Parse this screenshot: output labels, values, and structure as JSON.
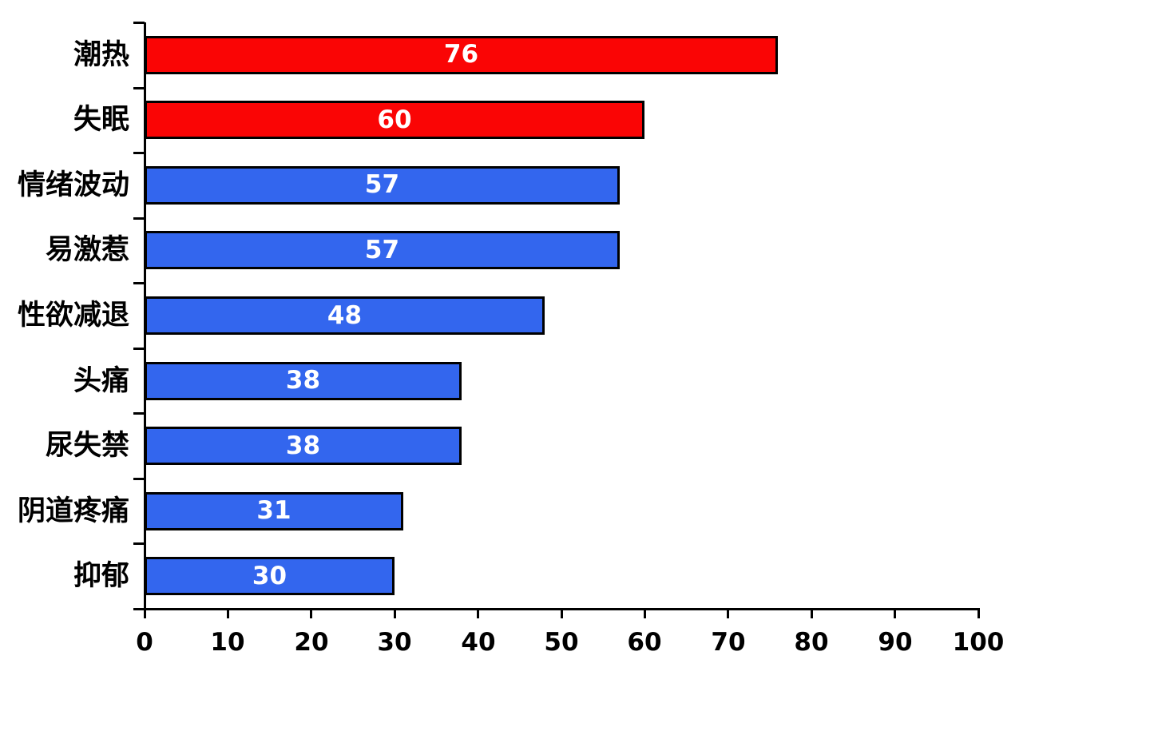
{
  "chart_data": {
    "type": "bar",
    "orientation": "horizontal",
    "title": "",
    "xlabel": "",
    "ylabel": "",
    "categories": [
      "潮热",
      "失眠",
      "情绪波动",
      "易激惹",
      "性欲减退",
      "头痛",
      "尿失禁",
      "阴道疼痛",
      "抑郁"
    ],
    "values": [
      76,
      60,
      57,
      57,
      48,
      38,
      38,
      31,
      30
    ],
    "bar_colors": [
      "#FA0505",
      "#FA0505",
      "#3366EE",
      "#3366EE",
      "#3366EE",
      "#3366EE",
      "#3366EE",
      "#3366EE",
      "#3366EE"
    ],
    "value_label_color": "#FFFFFF",
    "xlim": [
      0,
      100
    ],
    "x_ticks": [
      0,
      10,
      20,
      30,
      40,
      50,
      60,
      70,
      80,
      90,
      100
    ],
    "grid": false,
    "legend": false,
    "axis_color": "#000000",
    "background_color": "#FFFFFF"
  }
}
